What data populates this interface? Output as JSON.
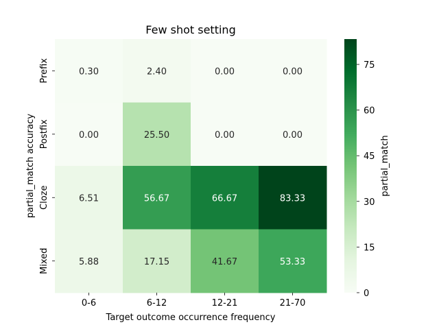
{
  "chart_data": {
    "type": "heatmap",
    "title": "Few shot setting",
    "xlabel": "Target outcome occurrence frequency",
    "ylabel": "partial_match accuracy",
    "x_categories": [
      "0-6",
      "6-12",
      "12-21",
      "21-70"
    ],
    "y_categories": [
      "Prefix",
      "Postfix",
      "Cloze",
      "Mixed"
    ],
    "values": [
      [
        0.3,
        2.4,
        0.0,
        0.0
      ],
      [
        0.0,
        25.5,
        0.0,
        0.0
      ],
      [
        6.51,
        56.67,
        66.67,
        83.33
      ],
      [
        5.88,
        17.15,
        41.67,
        53.33
      ]
    ],
    "labels": [
      [
        "0.30",
        "2.40",
        "0.00",
        "0.00"
      ],
      [
        "0.00",
        "25.50",
        "0.00",
        "0.00"
      ],
      [
        "6.51",
        "56.67",
        "66.67",
        "83.33"
      ],
      [
        "5.88",
        "17.15",
        "41.67",
        "53.33"
      ]
    ],
    "colorbar": {
      "label": "partial_match",
      "range": [
        0,
        83.33
      ],
      "ticks": [
        0,
        15,
        30,
        45,
        60,
        75
      ],
      "tick_labels": [
        "0",
        "15",
        "30",
        "45",
        "60",
        "75"
      ],
      "colormap": "Greens",
      "color_low": "#f7fcf5",
      "color_high": "#00441b"
    }
  }
}
